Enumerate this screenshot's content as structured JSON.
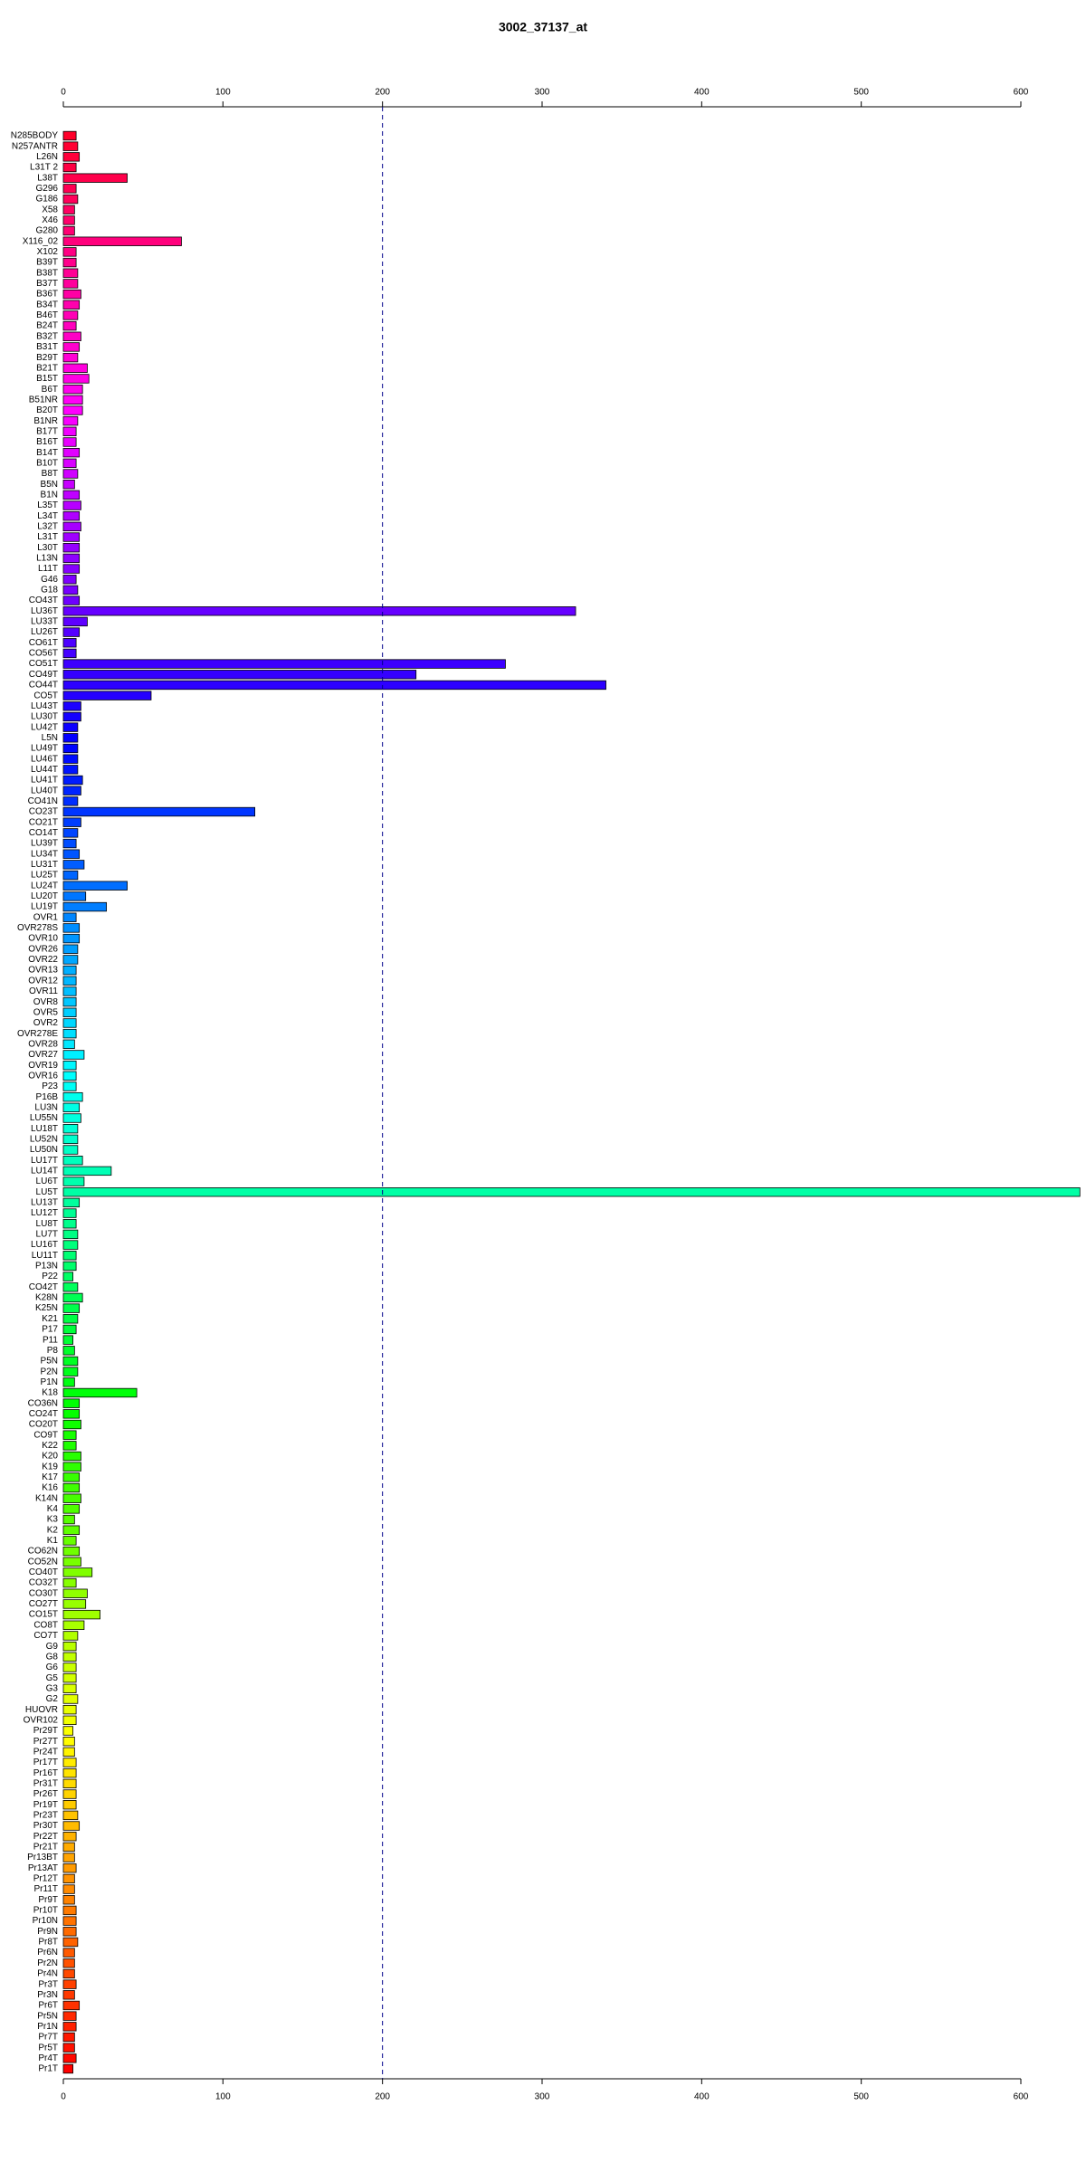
{
  "chart_data": {
    "type": "barh",
    "title": "3002_37137_at",
    "categories": [
      "N285BODY",
      "N257ANTR",
      "L26N",
      "L31T 2",
      "L38T",
      "G296",
      "G186",
      "X58",
      "X46",
      "G280",
      "X116_02",
      "X102",
      "B39T",
      "B38T",
      "B37T",
      "B36T",
      "B34T",
      "B46T",
      "B24T",
      "B32T",
      "B31T",
      "B29T",
      "B21T",
      "B15T",
      "B6T",
      "B51NR",
      "B20T",
      "B1NR",
      "B17T",
      "B16T",
      "B14T",
      "B10T",
      "B8T",
      "B5N",
      "B1N",
      "L35T",
      "L34T",
      "L32T",
      "L31T",
      "L30T",
      "L13N",
      "L11T",
      "G46",
      "G18",
      "CO43T",
      "LU36T",
      "LU33T",
      "LU26T",
      "CO61T",
      "CO56T",
      "CO51T",
      "CO49T",
      "CO44T",
      "CO5T",
      "LU43T",
      "LU30T",
      "LU42T",
      "L5N",
      "LU49T",
      "LU46T",
      "LU44T",
      "LU41T",
      "LU40T",
      "CO41N",
      "CO23T",
      "CO21T",
      "CO14T",
      "LU39T",
      "LU34T",
      "LU31T",
      "LU25T",
      "LU24T",
      "LU20T",
      "LU19T",
      "OVR1",
      "OVR278S",
      "OVR10",
      "OVR26",
      "OVR22",
      "OVR13",
      "OVR12",
      "OVR11",
      "OVR8",
      "OVR5",
      "OVR2",
      "OVR278E",
      "OVR28",
      "OVR27",
      "OVR19",
      "OVR16",
      "P23",
      "P16B",
      "LU3N",
      "LU55N",
      "LU18T",
      "LU52N",
      "LU50N",
      "LU17T",
      "LU14T",
      "LU6T",
      "LU5T",
      "LU13T",
      "LU12T",
      "LU8T",
      "LU7T",
      "LU16T",
      "LU11T",
      "P13N",
      "P22",
      "CO42T",
      "K28N",
      "K25N",
      "K21",
      "P17",
      "P11",
      "P8",
      "P5N",
      "P2N",
      "P1N",
      "K18",
      "CO36N",
      "CO24T",
      "CO20T",
      "CO9T",
      "K22",
      "K20",
      "K19",
      "K17",
      "K16",
      "K14N",
      "K4",
      "K3",
      "K2",
      "K1",
      "CO62N",
      "CO52N",
      "CO40T",
      "CO32T",
      "CO30T",
      "CO27T",
      "CO15T",
      "CO8T",
      "CO7T",
      "G9",
      "G8",
      "G6",
      "G5",
      "G3",
      "G2",
      "HUOVR",
      "OVR102",
      "Pr29T",
      "Pr27T",
      "Pr24T",
      "Pr17T",
      "Pr16T",
      "Pr31T",
      "Pr26T",
      "Pr19T",
      "Pr23T",
      "Pr30T",
      "Pr22T",
      "Pr21T",
      "Pr13BT",
      "Pr13AT",
      "Pr12T",
      "Pr11T",
      "Pr9T",
      "Pr10T",
      "Pr10N",
      "Pr9N",
      "Pr8T",
      "Pr6N",
      "Pr2N",
      "Pr4N",
      "Pr3T",
      "Pr3N",
      "Pr6T",
      "Pr5N",
      "Pr1N",
      "Pr7T",
      "Pr5T",
      "Pr4T",
      "Pr1T"
    ],
    "values": [
      8,
      9,
      10,
      8,
      40,
      8,
      9,
      7,
      7,
      7,
      74,
      8,
      8,
      9,
      9,
      11,
      10,
      9,
      8,
      11,
      10,
      9,
      15,
      16,
      12,
      12,
      12,
      9,
      8,
      8,
      10,
      8,
      9,
      7,
      10,
      11,
      10,
      11,
      10,
      10,
      10,
      10,
      8,
      9,
      10,
      321,
      15,
      10,
      8,
      8,
      277,
      221,
      340,
      55,
      11,
      11,
      9,
      9,
      9,
      9,
      9,
      12,
      11,
      9,
      120,
      11,
      9,
      8,
      10,
      13,
      9,
      40,
      14,
      27,
      8,
      10,
      10,
      9,
      9,
      8,
      8,
      8,
      8,
      8,
      8,
      8,
      7,
      13,
      8,
      8,
      8,
      12,
      10,
      11,
      9,
      9,
      9,
      12,
      30,
      13,
      637,
      10,
      8,
      8,
      9,
      9,
      8,
      8,
      6,
      9,
      12,
      10,
      9,
      8,
      6,
      7,
      9,
      9,
      7,
      46,
      10,
      10,
      11,
      8,
      8,
      11,
      11,
      10,
      10,
      11,
      10,
      7,
      10,
      8,
      10,
      11,
      18,
      8,
      15,
      14,
      23,
      13,
      9,
      8,
      8,
      8,
      8,
      8,
      9,
      8,
      8,
      6,
      7,
      7,
      8,
      8,
      8,
      8,
      8,
      9,
      10,
      8,
      7,
      7,
      8,
      7,
      7,
      7,
      8,
      8,
      8,
      9,
      7,
      7,
      7,
      8,
      7,
      10,
      8,
      8,
      7,
      7,
      8,
      6
    ],
    "xlim": [
      0,
      600
    ],
    "xticks": [
      0,
      100,
      200,
      300,
      400,
      500,
      600
    ],
    "reference_line": 200
  }
}
